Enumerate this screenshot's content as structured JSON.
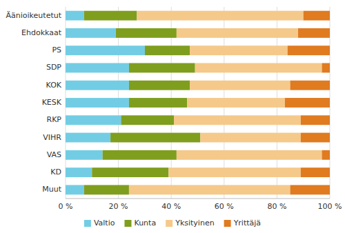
{
  "chart_data": {
    "type": "bar",
    "orientation": "horizontal",
    "stacked": true,
    "categories": [
      "Äänioikeutetut",
      "Ehdokkaat",
      "PS",
      "SDP",
      "KOK",
      "KESK",
      "RKP",
      "VIHR",
      "VAS",
      "KD",
      "Muut"
    ],
    "series": [
      {
        "name": "Valtio",
        "color": "#72cde4",
        "values": [
          7,
          19,
          30,
          24,
          24,
          24,
          21,
          17,
          14,
          10,
          7
        ]
      },
      {
        "name": "Kunta",
        "color": "#7f9e1e",
        "values": [
          20,
          23,
          17,
          25,
          23,
          22,
          20,
          34,
          28,
          29,
          17
        ]
      },
      {
        "name": "Yksityinen",
        "color": "#f5c98a",
        "values": [
          63,
          46,
          37,
          48,
          38,
          37,
          48,
          38,
          55,
          50,
          61
        ]
      },
      {
        "name": "Yrittäjä",
        "color": "#e07b20",
        "values": [
          10,
          12,
          16,
          3,
          15,
          17,
          11,
          11,
          3,
          11,
          15
        ]
      }
    ],
    "xlim": [
      0,
      100
    ],
    "xticks": [
      {
        "value": 0,
        "label": "0 %"
      },
      {
        "value": 20,
        "label": "20 %"
      },
      {
        "value": 40,
        "label": "40 %"
      },
      {
        "value": 60,
        "label": "60 %"
      },
      {
        "value": 80,
        "label": "80 %"
      },
      {
        "value": 100,
        "label": "100 %"
      }
    ],
    "grid": true,
    "legend": "bottom"
  }
}
